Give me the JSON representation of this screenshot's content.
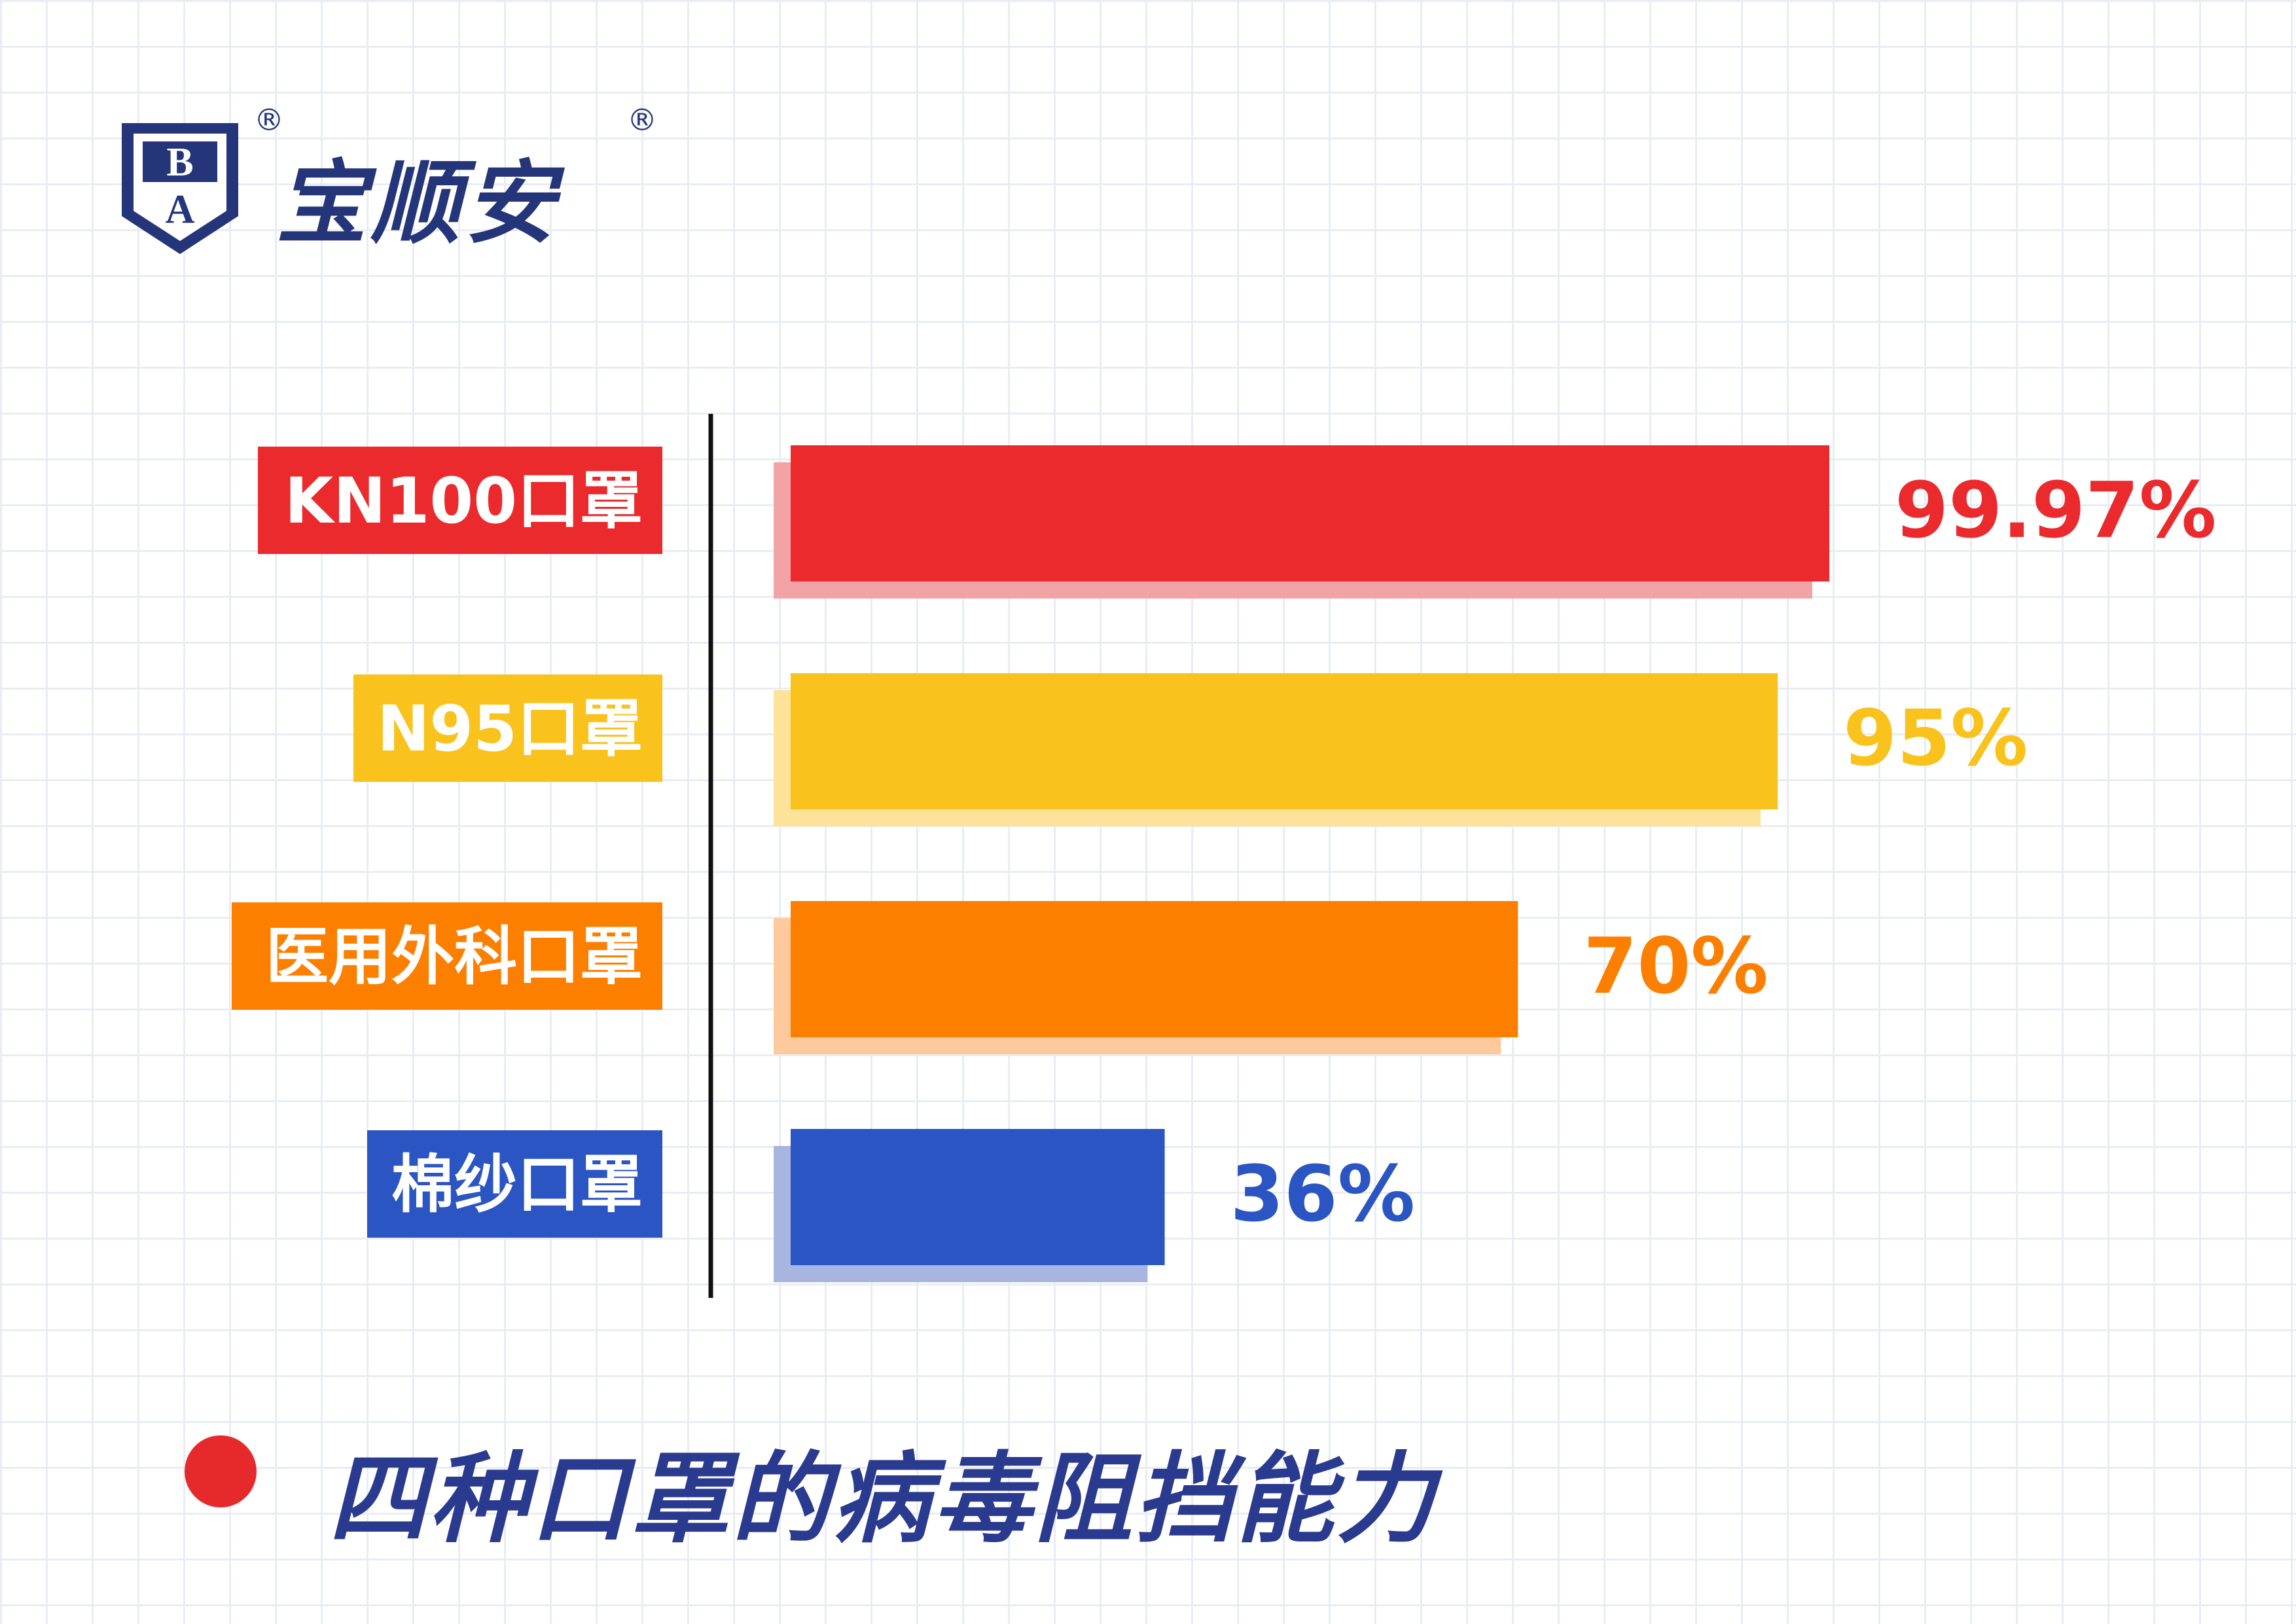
{
  "logo": {
    "shield_letters": [
      "B",
      "A"
    ],
    "brand_name": "宝顺安",
    "registered_mark": "®",
    "color": "#25357a"
  },
  "title": "四种口罩的病毒阻挡能力",
  "title_color": "#2a3a8f",
  "bullet_color": "#e62a2c",
  "chart_data": {
    "type": "bar",
    "orientation": "horizontal",
    "categories": [
      "KN100口罩",
      "N95口罩",
      "医用外科口罩",
      "棉纱口罩"
    ],
    "values": [
      99.97,
      95,
      70,
      36
    ],
    "value_labels": [
      "99.97%",
      "95%",
      "70%",
      "36%"
    ],
    "colors": [
      "#eb2a2d",
      "#f9c21d",
      "#fd7f00",
      "#2a55c2"
    ],
    "shadow_colors": [
      "#f2a3a5",
      "#fde29a",
      "#fec99c",
      "#a8b5e0"
    ],
    "xlim": [
      0,
      120
    ],
    "title": "四种口罩的病毒阻挡能力",
    "xlabel": "",
    "ylabel": "",
    "grid": false,
    "legend": "none"
  }
}
